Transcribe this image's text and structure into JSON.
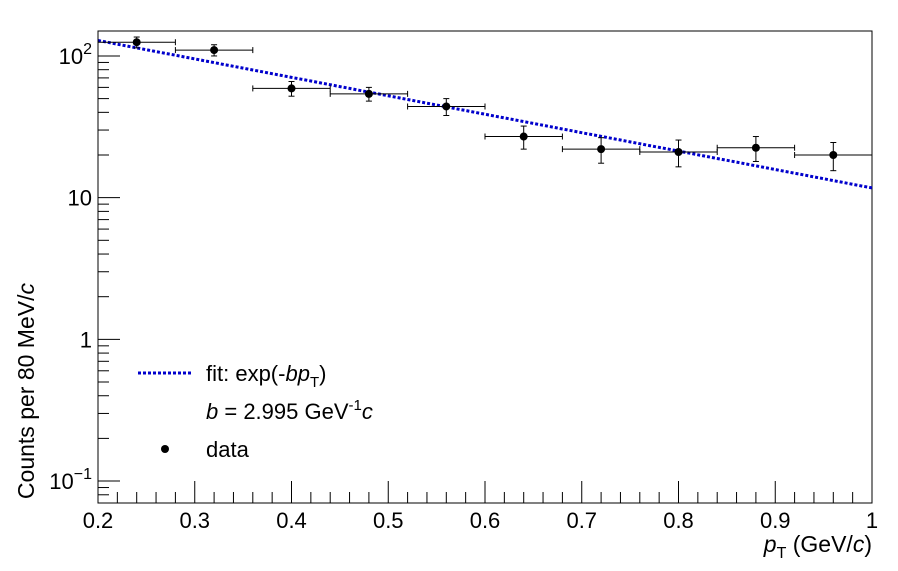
{
  "chart_data": {
    "type": "scatter",
    "title": "",
    "xlabel": {
      "p": "p",
      "sub": "T",
      "pre": " (GeV/",
      "c": "c",
      "post": ")"
    },
    "ylabel": {
      "text": "Counts per 80 MeV/",
      "c": "c"
    },
    "xlim": [
      0.2,
      1.0
    ],
    "ylim": [
      0.07,
      150
    ],
    "yscale": "log",
    "grid": false,
    "x_ticks": [
      "0.2",
      "0.3",
      "0.4",
      "0.5",
      "0.6",
      "0.7",
      "0.8",
      "0.9",
      "1"
    ],
    "y_ticks": [
      {
        "base": "10",
        "exp": "−1"
      },
      {
        "base": "1",
        "exp": ""
      },
      {
        "base": "10",
        "exp": ""
      },
      {
        "base": "10",
        "exp": "2"
      }
    ],
    "series": [
      {
        "name": "data",
        "x": [
          0.24,
          0.32,
          0.4,
          0.48,
          0.56,
          0.64,
          0.72,
          0.8,
          0.88,
          0.96
        ],
        "y": [
          125,
          110,
          59,
          54,
          44,
          27,
          22,
          21,
          22.5,
          20
        ],
        "y_err_low": [
          11,
          10,
          7,
          6,
          6,
          5,
          4.5,
          4.5,
          4.5,
          4.5
        ],
        "y_err_high": [
          11,
          10,
          7,
          6,
          6,
          5,
          4.5,
          4.5,
          4.5,
          4.5
        ],
        "x_err": 0.04,
        "color": "#000000"
      }
    ],
    "fit": {
      "function": "A*exp(-b*x)",
      "A": 234,
      "b": 2.995,
      "x_range": [
        0.2,
        1.0
      ],
      "color": "#0000cc"
    },
    "legend": {
      "position": "bottom-left",
      "fit_label": {
        "pre": "fit: exp(-",
        "b": "b",
        "p": "p",
        "sub": "T",
        "post": ")"
      },
      "b_label": {
        "b": "b",
        "value": " = 2.995 GeV",
        "exp": "-1",
        "c": "c"
      },
      "data_label": "data"
    }
  }
}
